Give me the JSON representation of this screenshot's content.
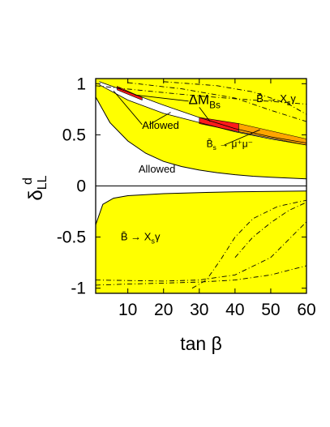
{
  "chart_data": {
    "type": "area",
    "xlabel": "tan β",
    "ylabel": "δ",
    "ylabel_sup": "d",
    "ylabel_sub": "LL",
    "xlim": [
      1,
      60
    ],
    "ylim": [
      -1.05,
      1.05
    ],
    "x_ticks": [
      10,
      20,
      30,
      40,
      50,
      60
    ],
    "y_ticks": [
      1,
      0.5,
      0,
      -0.5,
      -1
    ],
    "x_tick_labels": [
      "10",
      "20",
      "30",
      "40",
      "50",
      "60"
    ],
    "y_tick_labels": [
      "1",
      "0.5",
      "0",
      "-0.5",
      "-1"
    ],
    "grid": false,
    "legend": "none",
    "colors": {
      "excluded": "#ffff00",
      "delta_m_bs": "#ff1a1a",
      "bs_mumu": "#ffa500",
      "allowed": "#ffffff",
      "contour": "#000000"
    },
    "regions": {
      "upper_excluded_lower_edge": {
        "x": [
          1,
          5,
          10,
          15,
          20,
          25,
          30,
          35,
          40,
          45,
          50,
          55,
          60
        ],
        "y": [
          0.87,
          0.62,
          0.44,
          0.32,
          0.24,
          0.19,
          0.155,
          0.13,
          0.11,
          0.095,
          0.085,
          0.077,
          0.07
        ]
      },
      "allowed_band_lower_edge": {
        "x": [
          2,
          10,
          20,
          30,
          40,
          50,
          60
        ],
        "y": [
          0.99,
          0.84,
          0.71,
          0.62,
          0.53,
          0.46,
          0.4
        ]
      },
      "allowed_band_upper_edge": {
        "x": [
          2,
          10,
          20,
          30,
          40,
          50,
          60
        ],
        "y": [
          1.02,
          0.92,
          0.79,
          0.67,
          0.56,
          0.48,
          0.42
        ]
      },
      "lower_excluded_upper_edge": {
        "x": [
          1,
          3,
          6,
          10,
          20,
          30,
          40,
          50,
          60
        ],
        "y": [
          -0.38,
          -0.18,
          -0.12,
          -0.095,
          -0.075,
          -0.065,
          -0.058,
          -0.053,
          -0.05
        ]
      },
      "delta_m_bs_upper": {
        "x": [
          7,
          12,
          14
        ],
        "y": [
          0.95,
          0.89,
          0.86
        ]
      },
      "delta_m_bs_lower": {
        "x": [
          30,
          35,
          41
        ],
        "y": [
          0.64,
          0.57,
          0.53
        ]
      },
      "bs_mumu_band": {
        "x": [
          41,
          60
        ],
        "y_low": [
          0.53,
          0.4
        ],
        "y_high": [
          0.61,
          0.46
        ]
      }
    },
    "annotations": [
      {
        "label": "Allowed",
        "x": 14,
        "y": 0.56
      },
      {
        "label": "Allowed",
        "x": 13,
        "y": 0.13
      },
      {
        "label": "ΔM",
        "sub": "Bs",
        "x": 27,
        "y": 0.8
      },
      {
        "label": "B̄ → X",
        "sub": "s",
        "tail": "γ",
        "x": 46,
        "y": 0.82
      },
      {
        "label": "B̄",
        "sub": "s",
        "tail": " → μ⁺μ⁻",
        "x": 32,
        "y": 0.38
      },
      {
        "label": "B̄ → X",
        "sub": "s",
        "tail": "γ",
        "x": 8,
        "y": -0.53
      }
    ]
  }
}
